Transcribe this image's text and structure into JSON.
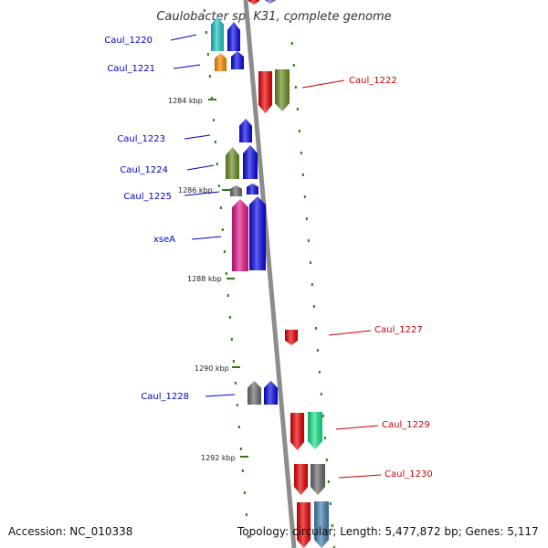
{
  "title": "Caulobacter sp. K31, complete genome",
  "footer": {
    "accession": "Accession: NC_010338",
    "topology": "Topology: circular; Length: 5,477,872 bp; Genes: 5,117"
  },
  "ticks": [
    "1284 kbp",
    "1286 kbp",
    "1288 kbp",
    "1290 kbp",
    "1292 kbp"
  ],
  "genes_minus": [
    "Caul_1220",
    "Caul_1221",
    "Caul_1223",
    "Caul_1224",
    "Caul_1225",
    "xseA",
    "Caul_1228"
  ],
  "genes_plus": [
    "Caul_1222",
    "Caul_1227",
    "Caul_1229",
    "Caul_1230"
  ],
  "colors": {
    "backbone": "#8c8c8c",
    "tick": "#2e7d14",
    "minus_label": "#0000cc",
    "plus_label": "#cc0000",
    "red": "#ee0000",
    "blue": "#0a0ae6",
    "olive": "#6b8e23",
    "cyan": "#1ec8c8",
    "orange": "#ff8c00",
    "magenta": "#e6198c",
    "grey": "#6e6e6e",
    "green": "#19e68c",
    "steel": "#4682b4",
    "purple": "#7a6ad0"
  }
}
